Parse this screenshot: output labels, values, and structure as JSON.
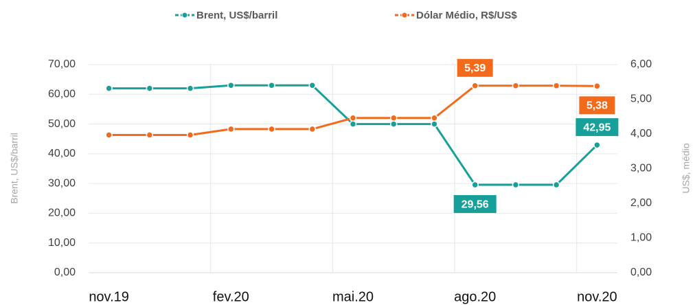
{
  "chart_data": {
    "type": "line",
    "categories": [
      "nov.19",
      null,
      null,
      "fev.20",
      null,
      null,
      "mai.20",
      null,
      null,
      "ago.20",
      null,
      null,
      "nov.20"
    ],
    "series": [
      {
        "name": "Brent, US$/barril",
        "color": "#17a09a",
        "axis": "y",
        "values": [
          62,
          62,
          62,
          63,
          63,
          63,
          50,
          50,
          50,
          29.56,
          29.56,
          29.56,
          42.95
        ],
        "value_labels": [
          null,
          null,
          null,
          null,
          null,
          null,
          null,
          null,
          null,
          "29,56",
          null,
          null,
          "42,95"
        ]
      },
      {
        "name": "Dólar Médio, R$/US$",
        "color": "#f26a1b",
        "axis": "y2",
        "values": [
          3.97,
          3.97,
          3.97,
          4.14,
          4.14,
          4.14,
          4.46,
          4.46,
          4.46,
          5.39,
          5.39,
          5.39,
          5.38
        ],
        "value_labels": [
          null,
          null,
          null,
          null,
          null,
          null,
          null,
          null,
          null,
          "5,39",
          null,
          null,
          "5,38"
        ]
      }
    ],
    "ylabel": "Brent, US$/barril",
    "y2label": "US$, médio",
    "ylim": [
      0,
      70
    ],
    "yticks": [
      {
        "value": 0,
        "label": "0,00"
      },
      {
        "value": 10,
        "label": "10,00"
      },
      {
        "value": 20,
        "label": "20,00"
      },
      {
        "value": 30,
        "label": "30,00"
      },
      {
        "value": 40,
        "label": "40,00"
      },
      {
        "value": 50,
        "label": "50,00"
      },
      {
        "value": 60,
        "label": "60,00"
      },
      {
        "value": 70,
        "label": "70,00"
      }
    ],
    "y2lim": [
      0,
      6
    ],
    "y2ticks": [
      {
        "value": 0,
        "label": "0,00"
      },
      {
        "value": 1,
        "label": "1,00"
      },
      {
        "value": 2,
        "label": "2,00"
      },
      {
        "value": 3,
        "label": "3,00"
      },
      {
        "value": 4,
        "label": "4,00"
      },
      {
        "value": 5,
        "label": "5,00"
      },
      {
        "value": 6,
        "label": "6,00"
      }
    ],
    "grid": true,
    "legend": "top"
  }
}
